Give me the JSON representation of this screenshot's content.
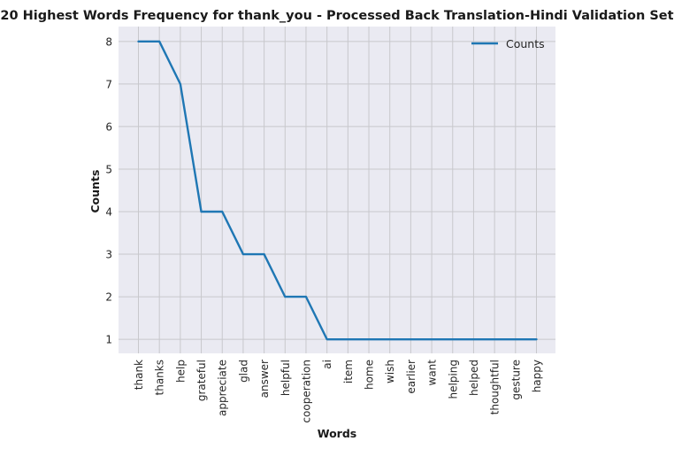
{
  "chart_data": {
    "type": "line",
    "title": "20 Highest Words Frequency for thank_you - Processed Back Translation-Hindi Validation Set",
    "xlabel": "Words",
    "ylabel": "Counts",
    "categories": [
      "thank",
      "thanks",
      "help",
      "grateful",
      "appreciate",
      "glad",
      "answer",
      "helpful",
      "cooperation",
      "ai",
      "item",
      "home",
      "wish",
      "earlier",
      "want",
      "helping",
      "helped",
      "thoughtful",
      "gesture",
      "happy"
    ],
    "series": [
      {
        "name": "Counts",
        "values": [
          8,
          8,
          7,
          4,
          4,
          3,
          3,
          2,
          2,
          1,
          1,
          1,
          1,
          1,
          1,
          1,
          1,
          1,
          1,
          1
        ],
        "color": "#1f77b4"
      }
    ],
    "yticks": [
      1,
      2,
      3,
      4,
      5,
      6,
      7,
      8
    ],
    "ylim": [
      0.67,
      8.35
    ],
    "grid": true,
    "legend_position": "top-right",
    "background_color": "#eaeaf2"
  }
}
